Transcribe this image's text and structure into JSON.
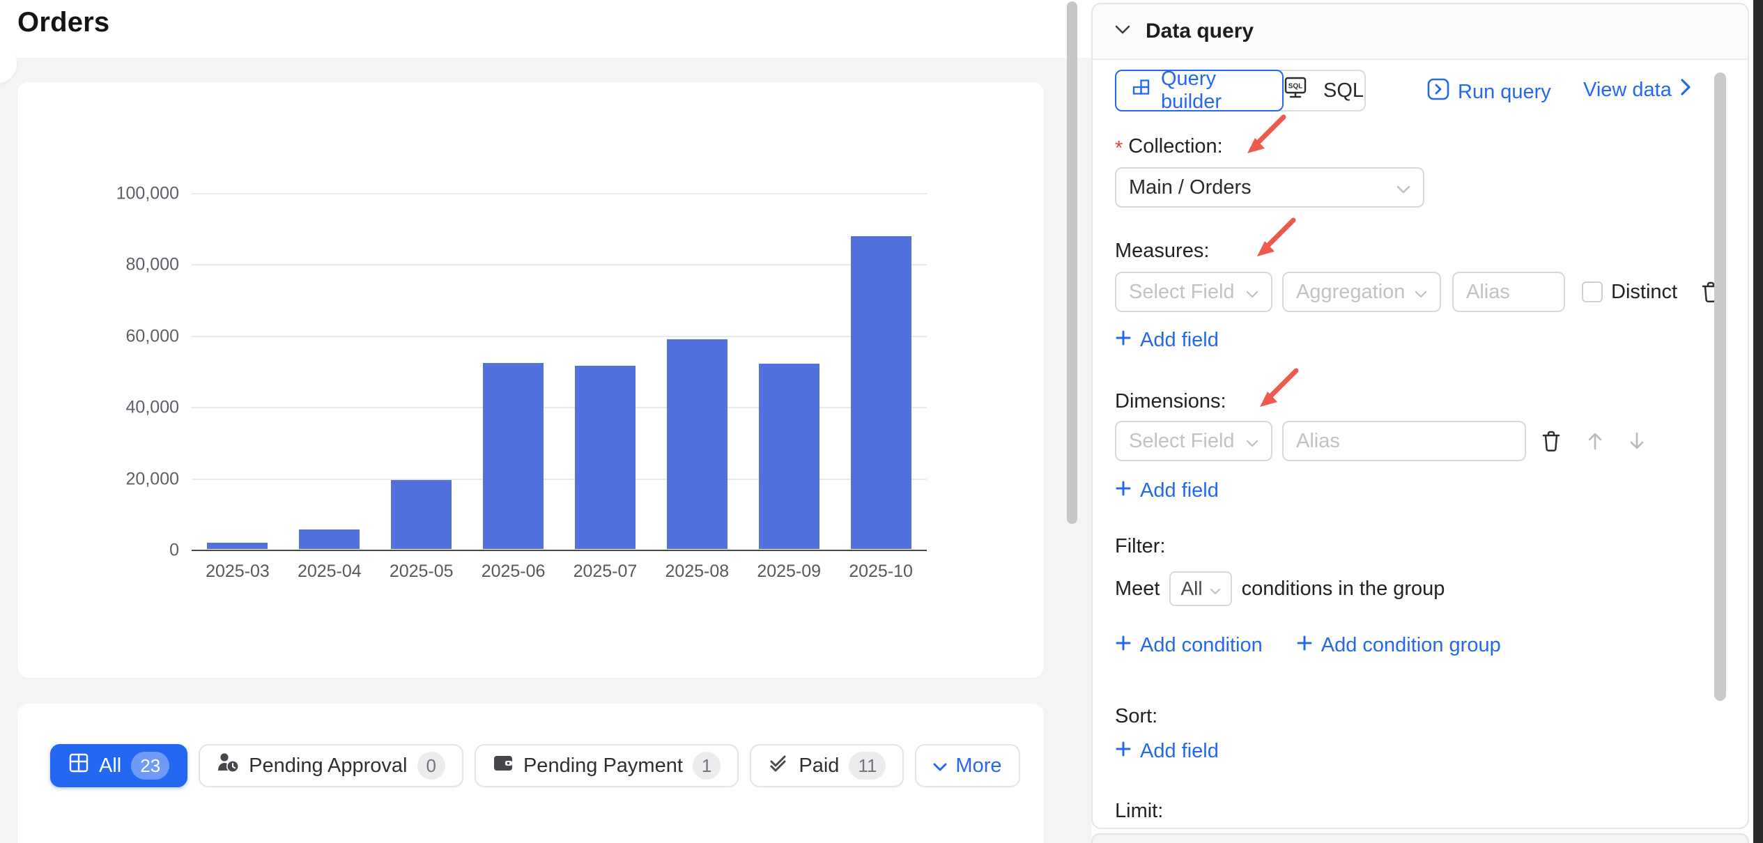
{
  "page": {
    "title": "Orders"
  },
  "colors": {
    "primary": "#2468f2",
    "bar": "#5271dd",
    "annotation_red": "#ee5a4f",
    "required_red": "#e8443c",
    "page_gray": "#f5f5f6"
  },
  "chart_data": {
    "type": "bar",
    "categories": [
      "2025-03",
      "2025-04",
      "2025-05",
      "2025-06",
      "2025-07",
      "2025-08",
      "2025-09",
      "2025-10"
    ],
    "values": [
      1700,
      5400,
      19400,
      52200,
      51300,
      58800,
      51900,
      87700
    ],
    "title": "",
    "xlabel": "",
    "ylabel": "",
    "ylim": [
      0,
      100000
    ],
    "yticks": [
      0,
      20000,
      40000,
      60000,
      80000,
      100000
    ],
    "ytick_labels": [
      "0",
      "20,000",
      "40,000",
      "60,000",
      "80,000",
      "100,000"
    ],
    "bar_color": "#5271dd",
    "grid": true,
    "legend": "none"
  },
  "filters": {
    "buttons": [
      {
        "label": "All",
        "count": "23",
        "icon": "table-grid-icon",
        "active": true
      },
      {
        "label": "Pending Approval",
        "count": "0",
        "icon": "user-clock-icon"
      },
      {
        "label": "Pending Payment",
        "count": "1",
        "icon": "wallet-icon"
      },
      {
        "label": "Paid",
        "count": "11",
        "icon": "double-check-icon"
      },
      {
        "label": "More",
        "icon": "chevron-down-icon"
      }
    ]
  },
  "panel": {
    "title": "Data query",
    "tabs": [
      {
        "label": "Query builder",
        "active": true
      },
      {
        "label": "SQL",
        "active": false
      }
    ],
    "actions": {
      "run_query": "Run query",
      "view_data": "View data"
    },
    "collection": {
      "label": "Collection:",
      "required": "*",
      "value": "Main / Orders"
    },
    "measures": {
      "label": "Measures:",
      "select_field_placeholder": "Select Field",
      "aggregation_placeholder": "Aggregation",
      "alias_placeholder": "Alias",
      "distinct_label": "Distinct",
      "add_field": "Add field"
    },
    "dimensions": {
      "label": "Dimensions:",
      "select_field_placeholder": "Select Field",
      "alias_placeholder": "Alias",
      "add_field": "Add field"
    },
    "filter": {
      "label": "Filter:",
      "meet": "Meet",
      "mode": "All",
      "suffix": "conditions in the group",
      "add_condition": "Add condition",
      "add_condition_group": "Add condition group"
    },
    "sort": {
      "label": "Sort:",
      "add_field": "Add field"
    },
    "limit": {
      "label": "Limit:"
    }
  }
}
